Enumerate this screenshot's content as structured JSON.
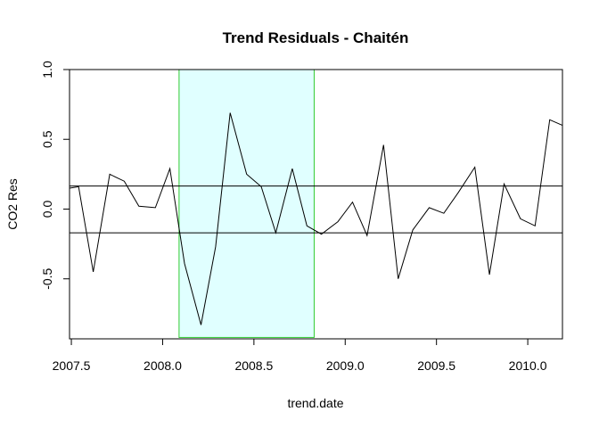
{
  "chart_data": {
    "type": "line",
    "title": "Trend Residuals -  Chaitén",
    "xlabel": "trend.date",
    "ylabel": "CO2 Res",
    "xlim": [
      2007.49,
      2010.19
    ],
    "ylim": [
      -0.93,
      1.0
    ],
    "x_ticks": [
      2007.5,
      2008.0,
      2008.5,
      2009.0,
      2009.5,
      2010.0
    ],
    "x_tick_labels": [
      "2007.5",
      "2008.0",
      "2008.5",
      "2009.0",
      "2009.5",
      "2010.0"
    ],
    "y_ticks": [
      -0.5,
      0.0,
      0.5,
      1.0
    ],
    "y_tick_labels": [
      "-0.5",
      "0.0",
      "0.5",
      "1.0"
    ],
    "grid": false,
    "highlight_band": {
      "x_start": 2008.09,
      "x_end": 2008.83,
      "y_start": -0.92,
      "y_end": 1.0,
      "fill": "#E0FFFF",
      "stroke": "#33CC33"
    },
    "reference_lines": [
      0.165,
      -0.17
    ],
    "series": [
      {
        "color": "#000000",
        "x": [
          2007.49,
          2007.54,
          2007.62,
          2007.71,
          2007.79,
          2007.87,
          2007.96,
          2008.04,
          2008.12,
          2008.21,
          2008.29,
          2008.37,
          2008.46,
          2008.54,
          2008.62,
          2008.71,
          2008.79,
          2008.87,
          2008.96,
          2009.04,
          2009.12,
          2009.21,
          2009.29,
          2009.37,
          2009.46,
          2009.54,
          2009.62,
          2009.71,
          2009.79,
          2009.87,
          2009.96,
          2010.04,
          2010.12,
          2010.19
        ],
        "y": [
          0.15,
          0.16,
          -0.45,
          0.25,
          0.2,
          0.02,
          0.01,
          0.29,
          -0.39,
          -0.83,
          -0.27,
          0.69,
          0.25,
          0.16,
          -0.17,
          0.29,
          -0.12,
          -0.18,
          -0.09,
          0.05,
          -0.19,
          0.46,
          -0.5,
          -0.15,
          0.01,
          -0.03,
          0.12,
          0.3,
          -0.47,
          0.18,
          -0.07,
          -0.12,
          0.64,
          0.6
        ]
      }
    ]
  }
}
